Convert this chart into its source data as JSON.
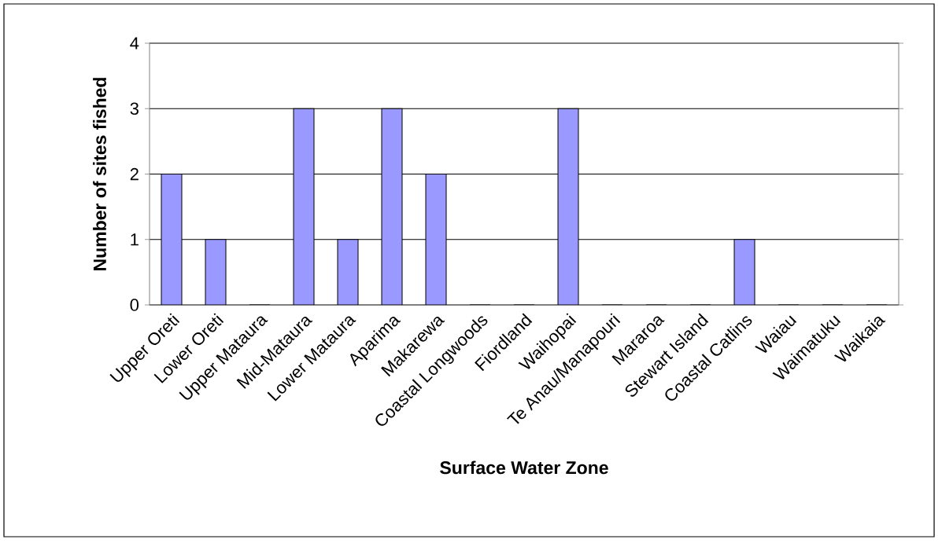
{
  "chart_data": {
    "type": "bar",
    "xlabel": "Surface Water Zone",
    "ylabel": "Number of sites fished",
    "categories": [
      "Upper Oreti",
      "Lower Oreti",
      "Upper Mataura",
      "Mid-Mataura",
      "Lower Mataura",
      "Aparima",
      "Makarewa",
      "Coastal Longwoods",
      "Fiordland",
      "Waihopai",
      "Te Anau/Manapouri",
      "Mararoa",
      "Stewart Island",
      "Coastal Catlins",
      "Waiau",
      "Waimatuku",
      "Waikaia"
    ],
    "values": [
      2,
      1,
      0,
      3,
      1,
      3,
      2,
      0,
      0,
      3,
      0,
      0,
      0,
      1,
      0,
      0,
      0
    ],
    "color": "#9999ff",
    "ylim": [
      0,
      4
    ],
    "yticks": [
      0,
      1,
      2,
      3,
      4
    ],
    "grid": "y"
  }
}
